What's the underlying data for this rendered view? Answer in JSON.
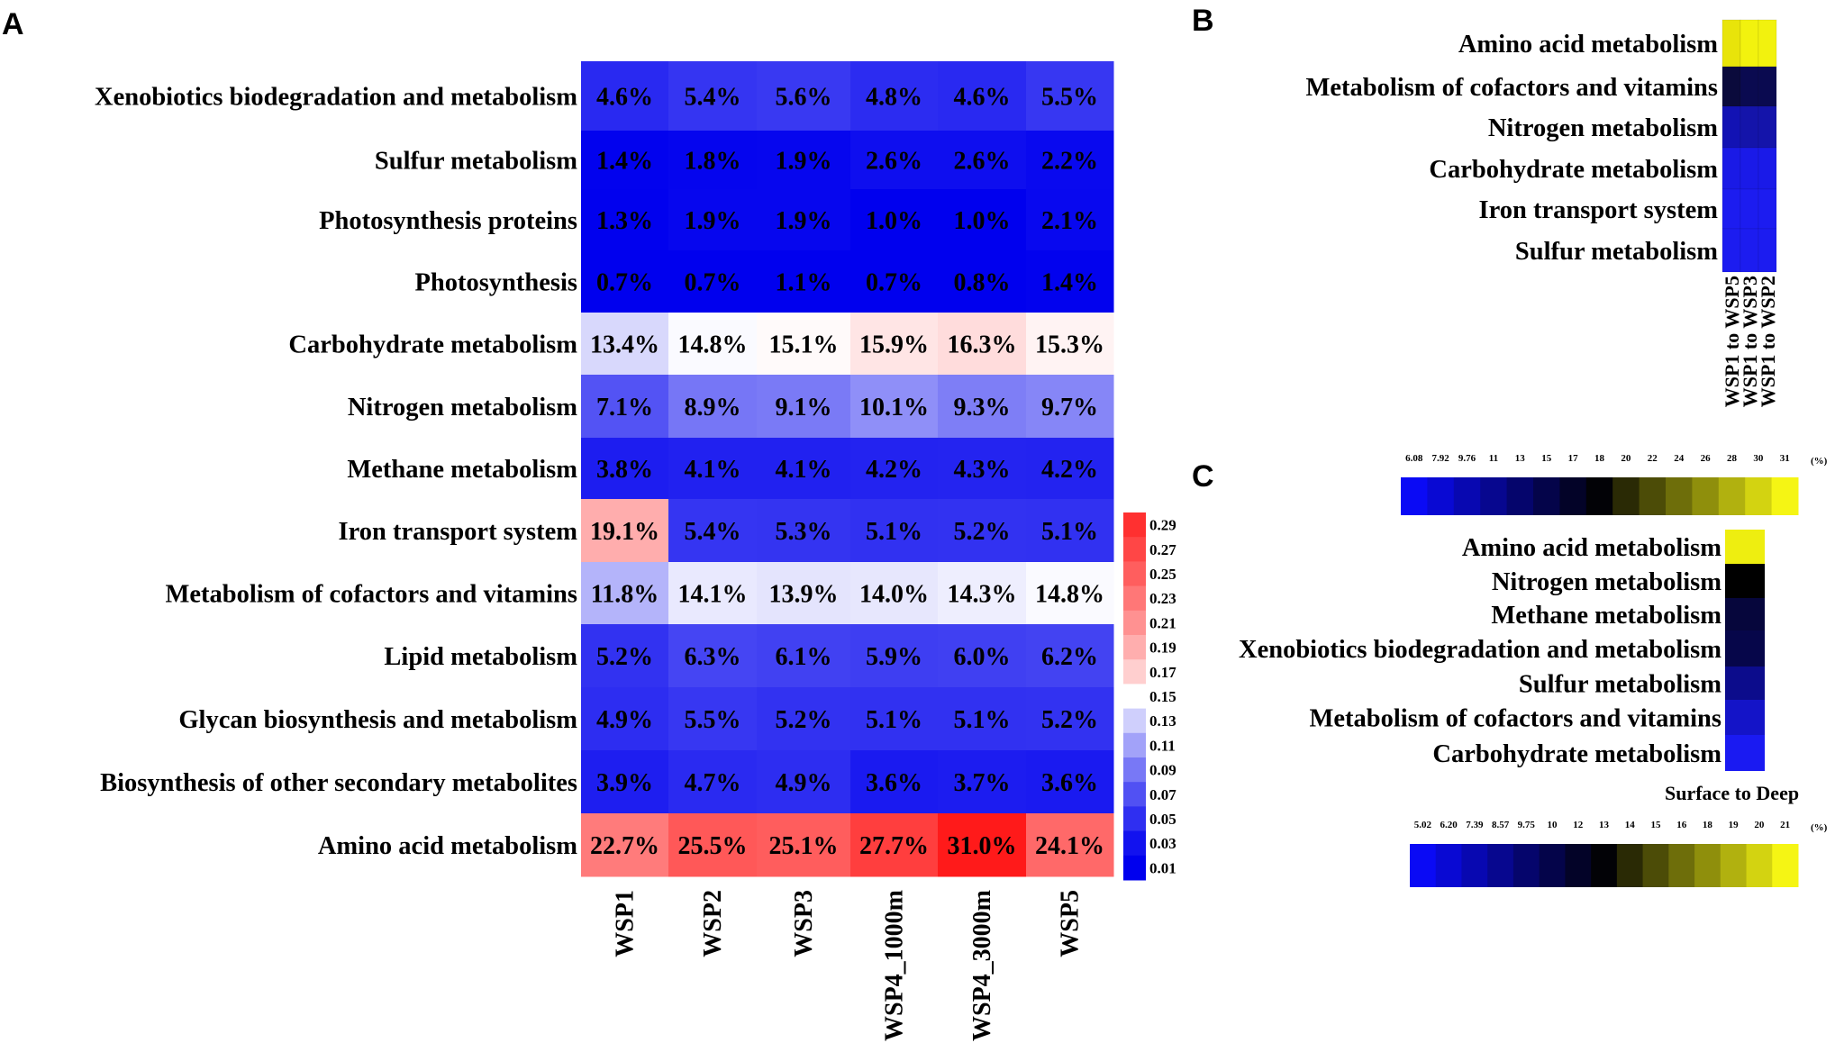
{
  "chart_data": [
    {
      "panel": "A",
      "type": "heatmap",
      "columns": [
        "WSP1",
        "WSP2",
        "WSP3",
        "WSP4_1000m",
        "WSP4_3000m",
        "WSP5"
      ],
      "rows": [
        "Xenobiotics biodegradation and metabolism",
        "Sulfur metabolism",
        "Photosynthesis proteins",
        "Photosynthesis",
        "Carbohydrate metabolism",
        "Nitrogen metabolism",
        "Methane metabolism",
        "Iron transport system",
        "Metabolism of cofactors and vitamins",
        "Lipid metabolism",
        "Glycan biosynthesis and metabolism",
        "Biosynthesis of other secondary metabolites",
        "Amino acid metabolism"
      ],
      "values": [
        [
          4.6,
          5.4,
          5.6,
          4.8,
          4.6,
          5.5
        ],
        [
          1.4,
          1.8,
          1.9,
          2.6,
          2.6,
          2.2
        ],
        [
          1.3,
          1.9,
          1.9,
          1.0,
          1.0,
          2.1
        ],
        [
          0.7,
          0.7,
          1.1,
          0.7,
          0.8,
          1.4
        ],
        [
          13.4,
          14.8,
          15.1,
          15.9,
          16.3,
          15.3
        ],
        [
          7.1,
          8.9,
          9.1,
          10.1,
          9.3,
          9.7
        ],
        [
          3.8,
          4.1,
          4.1,
          4.2,
          4.3,
          4.2
        ],
        [
          19.1,
          5.4,
          5.3,
          5.1,
          5.2,
          5.1
        ],
        [
          11.8,
          14.1,
          13.9,
          14.0,
          14.3,
          14.8
        ],
        [
          5.2,
          6.3,
          6.1,
          5.9,
          6.0,
          6.2
        ],
        [
          4.9,
          5.5,
          5.2,
          5.1,
          5.1,
          5.2
        ],
        [
          3.9,
          4.7,
          4.9,
          3.6,
          3.7,
          3.6
        ],
        [
          22.7,
          25.5,
          25.1,
          27.7,
          31.0,
          24.1
        ]
      ],
      "labels": [
        [
          "4.6%",
          "5.4%",
          "5.6%",
          "4.8%",
          "4.6%",
          "5.5%"
        ],
        [
          "1.4%",
          "1.8%",
          "1.9%",
          "2.6%",
          "2.6%",
          "2.2%"
        ],
        [
          "1.3%",
          "1.9%",
          "1.9%",
          "1.0%",
          "1.0%",
          "2.1%"
        ],
        [
          "0.7%",
          "0.7%",
          "1.1%",
          "0.7%",
          "0.8%",
          "1.4%"
        ],
        [
          "13.4%",
          "14.8%",
          "15.1%",
          "15.9%",
          "16.3%",
          "15.3%"
        ],
        [
          "7.1%",
          "8.9%",
          "9.1%",
          "10.1%",
          "9.3%",
          "9.7%"
        ],
        [
          "3.8%",
          "4.1%",
          "4.1%",
          "4.2%",
          "4.3%",
          "4.2%"
        ],
        [
          "19.1%",
          "5.4%",
          "5.3%",
          "5.1%",
          "5.2%",
          "5.1%"
        ],
        [
          "11.8%",
          "14.1%",
          "13.9%",
          "14.0%",
          "14.3%",
          "14.8%"
        ],
        [
          "5.2%",
          "6.3%",
          "6.1%",
          "5.9%",
          "6.0%",
          "6.2%"
        ],
        [
          "4.9%",
          "5.5%",
          "5.2%",
          "5.1%",
          "5.1%",
          "5.2%"
        ],
        [
          "3.9%",
          "4.7%",
          "4.9%",
          "3.6%",
          "3.7%",
          "3.6%"
        ],
        [
          "22.7%",
          "25.5%",
          "25.1%",
          "27.7%",
          "31.0%",
          "24.1%"
        ]
      ],
      "colorscale": {
        "ticks": [
          "0.29",
          "0.27",
          "0.25",
          "0.23",
          "0.21",
          "0.19",
          "0.17",
          "0.15",
          "0.13",
          "0.11",
          "0.09",
          "0.07",
          "0.05",
          "0.03",
          "0.01"
        ],
        "low": "#0000ee",
        "mid": "#ffffff",
        "high": "#ff1a1a"
      }
    },
    {
      "panel": "B",
      "type": "heatmap",
      "rows": [
        "Amino acid metabolism",
        "Metabolism of cofactors and vitamins",
        "Nitrogen metabolism",
        "Carbohydrate metabolism",
        "Iron transport system",
        "Sulfur metabolism"
      ],
      "columns": [
        "WSP1 to WSP5",
        "WSP1 to WSP3",
        "WSP1 to WSP2"
      ],
      "colors": [
        [
          "#e8e40a",
          "#f2f20e",
          "#f2f20e"
        ],
        [
          "#0a0a3c",
          "#0a0a50",
          "#0a0a50"
        ],
        [
          "#1212b4",
          "#1414aa",
          "#1414aa"
        ],
        [
          "#1a1ae6",
          "#1a1ae8",
          "#1a1ae8"
        ],
        [
          "#1c1cf0",
          "#1c1cf0",
          "#1c1cf0"
        ],
        [
          "#1c1cf0",
          "#1c1cf0",
          "#1c1cf0"
        ]
      ],
      "legend": {
        "ticks": [
          "6.08",
          "7.92",
          "9.76",
          "11",
          "13",
          "15",
          "17",
          "18",
          "20",
          "22",
          "24",
          "26",
          "28",
          "30",
          "31"
        ],
        "unit": "(%)"
      }
    },
    {
      "panel": "C",
      "type": "heatmap",
      "rows": [
        "Amino acid metabolism",
        "Nitrogen metabolism",
        "Methane metabolism",
        "Xenobiotics biodegradation and metabolism",
        "Sulfur metabolism",
        "Metabolism of cofactors and vitamins",
        "Carbohydrate metabolism"
      ],
      "columns": [
        "Surface to Deep"
      ],
      "colors": [
        "#eeee10",
        "#000000",
        "#06063c",
        "#06064a",
        "#0c0c8c",
        "#1414c8",
        "#1a1af2"
      ],
      "legend": {
        "ticks": [
          "5.02",
          "6.20",
          "7.39",
          "8.57",
          "9.75",
          "10",
          "12",
          "13",
          "14",
          "15",
          "16",
          "18",
          "19",
          "20",
          "21"
        ],
        "unit": "(%)"
      }
    }
  ],
  "panel_letters": {
    "a": "A",
    "b": "B",
    "c": "C"
  },
  "colorbar_a_ticks": [
    "0.29",
    "0.27",
    "0.25",
    "0.23",
    "0.21",
    "0.19",
    "0.17",
    "0.15",
    "0.13",
    "0.11",
    "0.09",
    "0.07",
    "0.05",
    "0.03",
    "0.01"
  ],
  "scale_b_ticks": [
    "6.08",
    "7.92",
    "9.76",
    "11",
    "13",
    "15",
    "17",
    "18",
    "20",
    "22",
    "24",
    "26",
    "28",
    "30",
    "31"
  ],
  "scale_c_ticks": [
    "5.02",
    "6.20",
    "7.39",
    "8.57",
    "9.75",
    "10",
    "12",
    "13",
    "14",
    "15",
    "16",
    "18",
    "19",
    "20",
    "21"
  ],
  "scale_unit": "(%)",
  "panel_c_xlabel": "Surface to Deep"
}
